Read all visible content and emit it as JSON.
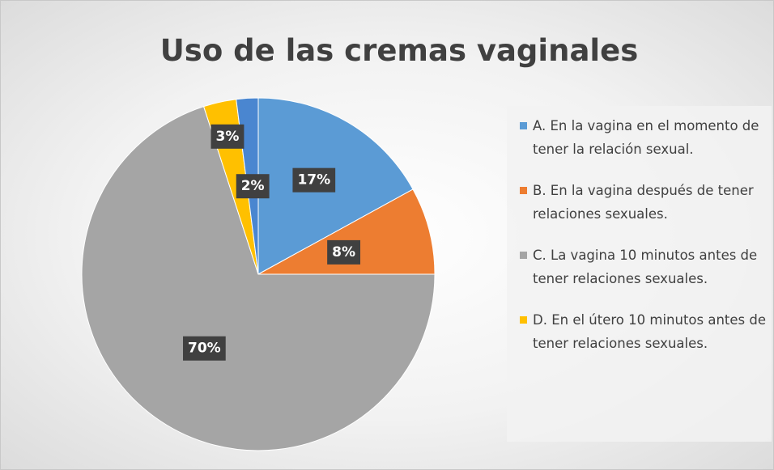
{
  "chart_data": {
    "type": "pie",
    "title": "Uso de las cremas vaginales",
    "categories": [
      "A. En la vagina en el momento de tener la relación sexual.",
      "B. En la vagina después de tener relaciones sexuales.",
      "C. La vagina 10 minutos antes de tener relaciones sexuales.",
      "D. En el útero 10 minutos antes de tener relaciones sexuales.",
      null
    ],
    "values": [
      17,
      8,
      70,
      3,
      2
    ],
    "value_labels": [
      "17%",
      "8%",
      "70%",
      "3%",
      "2%"
    ],
    "colors": [
      "#5b9bd5",
      "#ed7d31",
      "#a5a5a5",
      "#ffc000",
      "#4a86d0"
    ]
  }
}
